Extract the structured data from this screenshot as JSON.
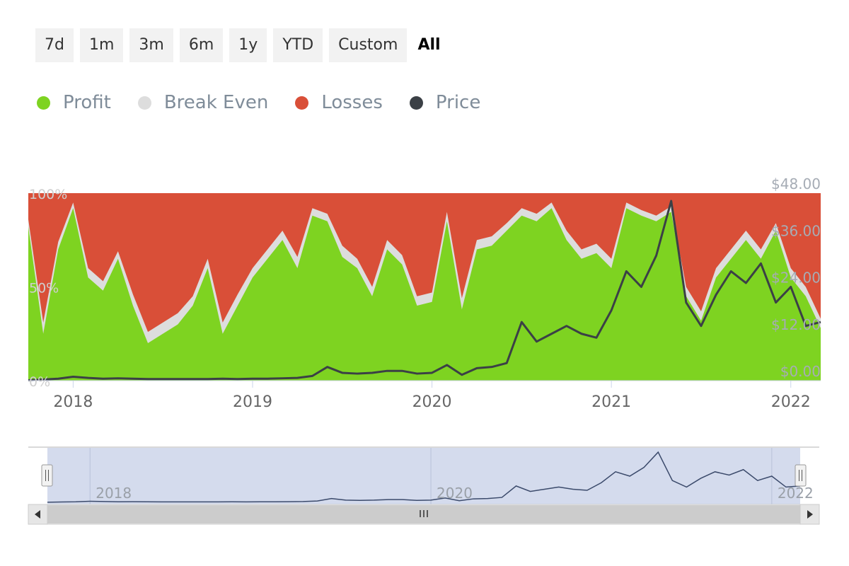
{
  "range_selector": {
    "buttons": [
      "7d",
      "1m",
      "3m",
      "6m",
      "1y",
      "YTD",
      "Custom",
      "All"
    ],
    "selected": "All"
  },
  "legend": [
    {
      "label": "Profit",
      "color": "#7ed321"
    },
    {
      "label": "Break Even",
      "color": "#dddddd"
    },
    {
      "label": "Losses",
      "color": "#d94f38"
    },
    {
      "label": "Price",
      "color": "#3b4046"
    }
  ],
  "colors": {
    "profit": "#7ed321",
    "break_even": "#dddddd",
    "losses": "#d94f38",
    "price": "#3b4046",
    "navigator_fill": "#d4dbed",
    "navigator_line": "#3b4a6b"
  },
  "chart_data": {
    "type": "area",
    "title": "",
    "x_ticks": [
      "2018",
      "2019",
      "2020",
      "2021",
      "2022"
    ],
    "y_left_ticks": [
      "0%",
      "50%",
      "100%"
    ],
    "y_right_ticks": [
      "$0.00",
      "$12.00",
      "$24.00",
      "$36.00",
      "$48.00"
    ],
    "ylim_left": [
      0,
      100
    ],
    "ylim_right": [
      0,
      48
    ],
    "x_range": [
      "2017-10",
      "2022-03"
    ],
    "series": [
      {
        "name": "Profit",
        "unit": "%",
        "x": [
          "2017-10",
          "2017-11",
          "2017-12",
          "2018-01",
          "2018-02",
          "2018-03",
          "2018-04",
          "2018-05",
          "2018-06",
          "2018-07",
          "2018-08",
          "2018-09",
          "2018-10",
          "2018-11",
          "2018-12",
          "2019-01",
          "2019-02",
          "2019-03",
          "2019-04",
          "2019-05",
          "2019-06",
          "2019-07",
          "2019-08",
          "2019-09",
          "2019-10",
          "2019-11",
          "2019-12",
          "2020-01",
          "2020-02",
          "2020-03",
          "2020-04",
          "2020-05",
          "2020-06",
          "2020-07",
          "2020-08",
          "2020-09",
          "2020-10",
          "2020-11",
          "2020-12",
          "2021-01",
          "2021-02",
          "2021-03",
          "2021-04",
          "2021-05",
          "2021-06",
          "2021-07",
          "2021-08",
          "2021-09",
          "2021-10",
          "2021-11",
          "2021-12",
          "2022-01",
          "2022-02",
          "2022-03"
        ],
        "values": [
          82,
          25,
          70,
          92,
          55,
          48,
          65,
          40,
          20,
          25,
          30,
          40,
          60,
          25,
          40,
          55,
          65,
          75,
          60,
          88,
          85,
          66,
          60,
          45,
          70,
          62,
          40,
          42,
          85,
          38,
          70,
          72,
          80,
          88,
          85,
          92,
          75,
          65,
          68,
          60,
          92,
          88,
          85,
          90,
          45,
          32,
          55,
          65,
          75,
          65,
          80,
          55,
          45,
          28
        ]
      },
      {
        "name": "Break Even",
        "unit": "%",
        "values": [
          4,
          6,
          4,
          3,
          5,
          5,
          4,
          6,
          6,
          6,
          6,
          5,
          5,
          6,
          6,
          5,
          5,
          5,
          6,
          4,
          4,
          6,
          5,
          5,
          5,
          5,
          5,
          5,
          5,
          6,
          5,
          5,
          4,
          4,
          4,
          3,
          5,
          5,
          5,
          5,
          3,
          3,
          3,
          3,
          5,
          5,
          5,
          5,
          5,
          5,
          4,
          5,
          5,
          5
        ]
      },
      {
        "name": "Losses",
        "unit": "%",
        "values": [
          14,
          69,
          26,
          5,
          40,
          47,
          31,
          54,
          74,
          69,
          64,
          55,
          35,
          69,
          54,
          40,
          30,
          20,
          34,
          8,
          11,
          28,
          35,
          50,
          25,
          33,
          55,
          53,
          10,
          56,
          25,
          23,
          16,
          8,
          11,
          5,
          20,
          30,
          27,
          35,
          5,
          9,
          12,
          7,
          50,
          63,
          40,
          30,
          20,
          30,
          16,
          40,
          50,
          67
        ]
      },
      {
        "name": "Price",
        "unit": "$",
        "values": [
          0.1,
          0.3,
          0.5,
          1.0,
          0.7,
          0.5,
          0.6,
          0.5,
          0.4,
          0.4,
          0.4,
          0.4,
          0.4,
          0.5,
          0.4,
          0.5,
          0.5,
          0.6,
          0.7,
          1.2,
          3.5,
          2.0,
          1.8,
          2.0,
          2.5,
          2.5,
          1.8,
          2.0,
          4.0,
          1.5,
          3.2,
          3.5,
          4.5,
          15.0,
          10.0,
          12.0,
          14.0,
          12.0,
          11.0,
          18.0,
          28.0,
          24.0,
          32.0,
          46.0,
          20.0,
          14.0,
          22.0,
          28.0,
          25.0,
          30.0,
          20.0,
          24.0,
          14.0,
          15.0
        ]
      }
    ],
    "navigator": {
      "x_ticks": [
        "2018",
        "2020",
        "2022"
      ]
    }
  }
}
